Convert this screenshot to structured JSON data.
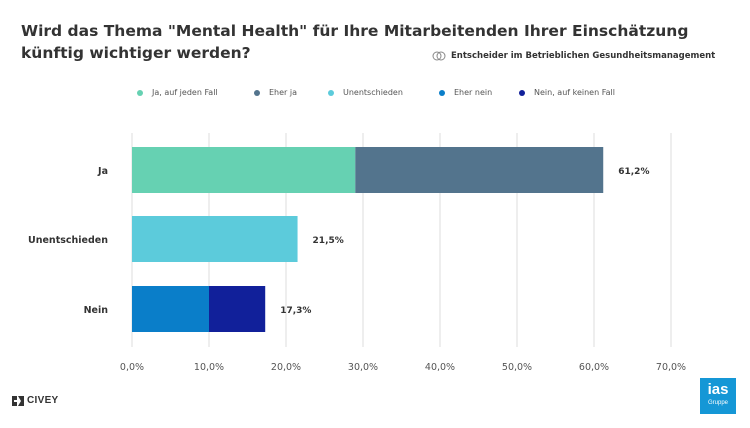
{
  "header": {
    "title": "Wird das Thema \"Mental Health\" für Ihre Mitarbeitenden Ihrer Einschätzung künftig wichtiger werden?",
    "subtitle": "Entscheider im Betrieblichen Gesundheitsmanagement",
    "subtitle_icon": "people-icon"
  },
  "footer": {
    "civey_label": "CIVEY",
    "civey_icon": "civey-logo-icon",
    "ias_main": "ias",
    "ias_sub": "Gruppe"
  },
  "colors": {
    "ja_auf_jeden_fall": "#66d1b2",
    "eher_ja": "#53748d",
    "unentschieden": "#5ccbdb",
    "eher_nein": "#0a7ec9",
    "nein_auf_keinen_fall": "#11209a",
    "ias_brand": "#1597d6"
  },
  "chart_data": {
    "type": "bar",
    "orientation": "horizontal",
    "stacked": true,
    "categories": [
      "Ja",
      "Unentschieden",
      "Nein"
    ],
    "series": [
      {
        "name": "Ja, auf jeden Fall",
        "values": [
          29.0,
          0,
          0
        ],
        "color": "#66d1b2"
      },
      {
        "name": "Eher ja",
        "values": [
          32.2,
          0,
          0
        ],
        "color": "#53748d"
      },
      {
        "name": "Unentschieden",
        "values": [
          0,
          21.5,
          0
        ],
        "color": "#5ccbdb"
      },
      {
        "name": "Eher nein",
        "values": [
          0,
          0,
          10.0
        ],
        "color": "#0a7ec9"
      },
      {
        "name": "Nein, auf keinen Fall",
        "values": [
          0,
          0,
          7.3
        ],
        "color": "#11209a"
      }
    ],
    "totals": [
      "61,2%",
      "21,5%",
      "17,3%"
    ],
    "xlim": [
      0,
      70
    ],
    "xticks": [
      "0,0%",
      "10,0%",
      "20,0%",
      "30,0%",
      "40,0%",
      "50,0%",
      "60,0%",
      "70,0%"
    ],
    "grid": "vertical",
    "legend_position": "top",
    "title": "Wird das Thema \"Mental Health\" für Ihre Mitarbeitenden Ihrer Einschätzung künftig wichtiger werden?",
    "xlabel": "",
    "ylabel": ""
  }
}
